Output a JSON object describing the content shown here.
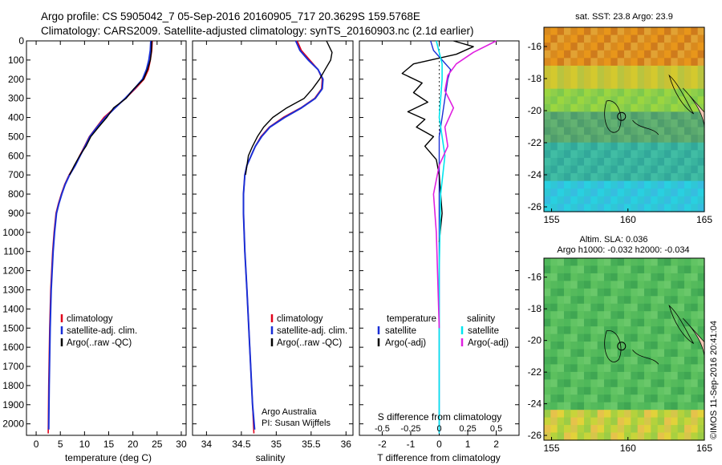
{
  "header": {
    "line1": "Argo profile: CS 5905042_7 05-Sep-2016 20160905_717 20.3629S 159.5768E",
    "line2": "Climatology: CARS2009. Satellite-adjusted climatology: synTS_20160903.nc (2.1d earlier)"
  },
  "colors": {
    "climatology": "#e0001b",
    "satellite_adj": "#1a2fd6",
    "argo": "#000000",
    "salinity_satellite": "#00e5ee",
    "salinity_argo": "#e020e0"
  },
  "chart_data": [
    {
      "type": "line",
      "panel": "temperature",
      "xlabel": "temperature (deg C)",
      "xlim": [
        -2,
        31
      ],
      "xticks": [
        0,
        5,
        10,
        15,
        20,
        25,
        30
      ],
      "ylim": [
        0,
        2060
      ],
      "yticks": [
        0,
        100,
        200,
        300,
        400,
        500,
        600,
        700,
        800,
        900,
        1000,
        1100,
        1200,
        1300,
        1400,
        1500,
        1600,
        1700,
        1800,
        1900,
        2000
      ],
      "legend": [
        "climatology",
        "satellite-adj. clim.",
        "Argo(..raw -QC)"
      ],
      "series": [
        {
          "name": "climatology",
          "color": "#e0001b",
          "x": [
            24.0,
            23.9,
            23.6,
            23.2,
            22.3,
            20.5,
            18.5,
            16.2,
            14.0,
            12.5,
            11.0,
            10.0,
            9.0,
            8.0,
            6.8,
            5.9,
            5.2,
            4.6,
            4.1,
            3.7,
            3.4,
            3.2,
            3.0,
            2.8,
            2.6,
            2.5
          ],
          "y": [
            0,
            50,
            100,
            150,
            200,
            250,
            300,
            350,
            400,
            450,
            500,
            550,
            600,
            650,
            700,
            750,
            800,
            850,
            900,
            1000,
            1100,
            1200,
            1300,
            1500,
            1800,
            2050
          ]
        },
        {
          "name": "satellite-adj. clim.",
          "color": "#1a2fd6",
          "x": [
            23.7,
            23.6,
            23.3,
            22.8,
            22.0,
            20.3,
            18.4,
            16.3,
            14.3,
            12.6,
            11.1,
            10.1,
            9.1,
            8.1,
            6.9,
            6.0,
            5.3,
            4.7,
            4.2,
            3.8,
            3.5,
            3.3,
            3.1,
            2.9,
            2.7,
            2.6
          ],
          "y": [
            0,
            50,
            100,
            150,
            200,
            250,
            300,
            350,
            400,
            450,
            500,
            550,
            600,
            650,
            700,
            750,
            800,
            850,
            900,
            1000,
            1100,
            1200,
            1300,
            1500,
            1800,
            2030
          ]
        },
        {
          "name": "Argo(..raw -QC)",
          "color": "#000000",
          "x": [
            23.9,
            23.8,
            23.6,
            23.0,
            22.2,
            20.2,
            18.6,
            16.0,
            14.6,
            12.9,
            11.3,
            10.3,
            9.0,
            7.9,
            6.9
          ],
          "y": [
            0,
            60,
            100,
            150,
            200,
            250,
            300,
            350,
            400,
            450,
            500,
            550,
            600,
            650,
            700
          ]
        }
      ]
    },
    {
      "type": "line",
      "panel": "salinity",
      "xlabel": "salinity",
      "xlim": [
        33.8,
        36.1
      ],
      "xticks": [
        34,
        34.5,
        35,
        35.5,
        36
      ],
      "ylim": [
        0,
        2060
      ],
      "legend": [
        "climatology",
        "satellite-adj. clim.",
        "Argo(..raw -QC)"
      ],
      "annotation": [
        "Argo Australia",
        "PI: Susan Wijffels"
      ],
      "series": [
        {
          "name": "climatology",
          "color": "#e0001b",
          "x": [
            35.3,
            35.36,
            35.48,
            35.6,
            35.66,
            35.65,
            35.55,
            35.35,
            35.1,
            34.9,
            34.78,
            34.7,
            34.64,
            34.58,
            34.55,
            34.53,
            34.53,
            34.55,
            34.58,
            34.62,
            34.66,
            34.68
          ],
          "y": [
            0,
            50,
            100,
            150,
            200,
            250,
            300,
            350,
            400,
            450,
            500,
            550,
            600,
            650,
            700,
            800,
            900,
            1100,
            1300,
            1600,
            1900,
            2050
          ]
        },
        {
          "name": "satellite-adj. clim.",
          "color": "#1a2fd6",
          "x": [
            35.28,
            35.34,
            35.46,
            35.6,
            35.67,
            35.66,
            35.56,
            35.36,
            35.12,
            34.91,
            34.79,
            34.7,
            34.64,
            34.58,
            34.55,
            34.53,
            34.53,
            34.55,
            34.58,
            34.62,
            34.66,
            34.69
          ],
          "y": [
            0,
            50,
            100,
            150,
            200,
            250,
            300,
            350,
            400,
            450,
            500,
            550,
            600,
            650,
            700,
            800,
            900,
            1100,
            1300,
            1600,
            1900,
            2030
          ]
        },
        {
          "name": "Argo(..raw -QC)",
          "color": "#000000",
          "x": [
            35.72,
            35.8,
            35.78,
            35.7,
            35.62,
            35.52,
            35.4,
            35.15,
            34.95,
            34.82,
            34.73,
            34.66,
            34.6,
            34.56
          ],
          "y": [
            0,
            60,
            100,
            150,
            200,
            250,
            300,
            350,
            400,
            450,
            500,
            550,
            600,
            700
          ]
        }
      ]
    },
    {
      "type": "line",
      "panel": "difference",
      "xlabel": "T difference from climatology",
      "xlabel_top": "S difference from climatology",
      "xlim": [
        -2.8,
        2.8
      ],
      "xticks": [
        -2,
        -1,
        0,
        1,
        2
      ],
      "s_ticks": [
        "-0.5",
        "-0.25",
        "0",
        "0.25",
        "0.5"
      ],
      "legend_temperature_title": "temperature",
      "legend_salinity_title": "salinity",
      "legend": [
        "satellite",
        "Argo(-adj)",
        "satellite",
        "Argo(-adj)"
      ],
      "series": [
        {
          "name": "temperature satellite",
          "color": "#1a2fd6",
          "x": [
            -0.3,
            -0.2,
            0.1,
            0.4,
            0.3,
            0.2,
            0.1,
            0.0,
            0.0,
            0.0,
            0.0
          ],
          "y": [
            0,
            50,
            100,
            150,
            200,
            300,
            400,
            500,
            700,
            1000,
            2050
          ]
        },
        {
          "name": "temperature Argo(-adj)",
          "color": "#000000",
          "x": [
            0.5,
            1.2,
            0.6,
            -0.9,
            -1.3,
            -0.6,
            -0.9,
            -0.4,
            -1.1,
            -0.5,
            -0.8,
            -0.2,
            -0.5,
            -0.1,
            0.0,
            0.1,
            0.0
          ],
          "y": [
            0,
            30,
            70,
            120,
            170,
            220,
            270,
            320,
            370,
            410,
            450,
            500,
            550,
            620,
            700,
            900,
            1050
          ]
        },
        {
          "name": "salinity satellite",
          "color": "#00e5ee",
          "x": [
            -0.1,
            0.0,
            0.1,
            0.1,
            0.05,
            0.0,
            0.1,
            0.2,
            0.05,
            0.0,
            0.0
          ],
          "y": [
            0,
            60,
            120,
            200,
            300,
            400,
            500,
            600,
            800,
            1200,
            2050
          ]
        },
        {
          "name": "salinity Argo(-adj)",
          "color": "#e020e0",
          "x": [
            2.0,
            1.2,
            0.6,
            0.3,
            0.2,
            0.5,
            0.2,
            0.3,
            0.0,
            -0.2,
            -0.1,
            0.0
          ],
          "y": [
            0,
            60,
            120,
            180,
            260,
            350,
            450,
            550,
            650,
            800,
            1000,
            1500
          ]
        }
      ]
    },
    {
      "type": "heatmap",
      "panel": "sst_map",
      "title": "sat. SST: 23.8 Argo: 23.9",
      "xlim": [
        154.5,
        165
      ],
      "ylim": [
        -26.3,
        -14.8
      ],
      "xticks": [
        155,
        160,
        165
      ],
      "yticks": [
        -16,
        -18,
        -20,
        -22,
        -24,
        -26
      ],
      "argo_position": [
        159.58,
        -20.36
      ]
    },
    {
      "type": "heatmap",
      "panel": "sla_map",
      "title_line1": "Altim. SLA: 0.036",
      "title_line2": "Argo h1000: -0.032 h2000: -0.034",
      "xlim": [
        154.5,
        165
      ],
      "ylim": [
        -26.3,
        -14.8
      ],
      "xticks": [
        155,
        160,
        165
      ],
      "yticks": [
        -16,
        -18,
        -20,
        -22,
        -24,
        -26
      ],
      "argo_position": [
        159.58,
        -20.36
      ]
    }
  ],
  "footer": {
    "credit": "©IMOS 11-Sep-2016 20:41:04"
  }
}
